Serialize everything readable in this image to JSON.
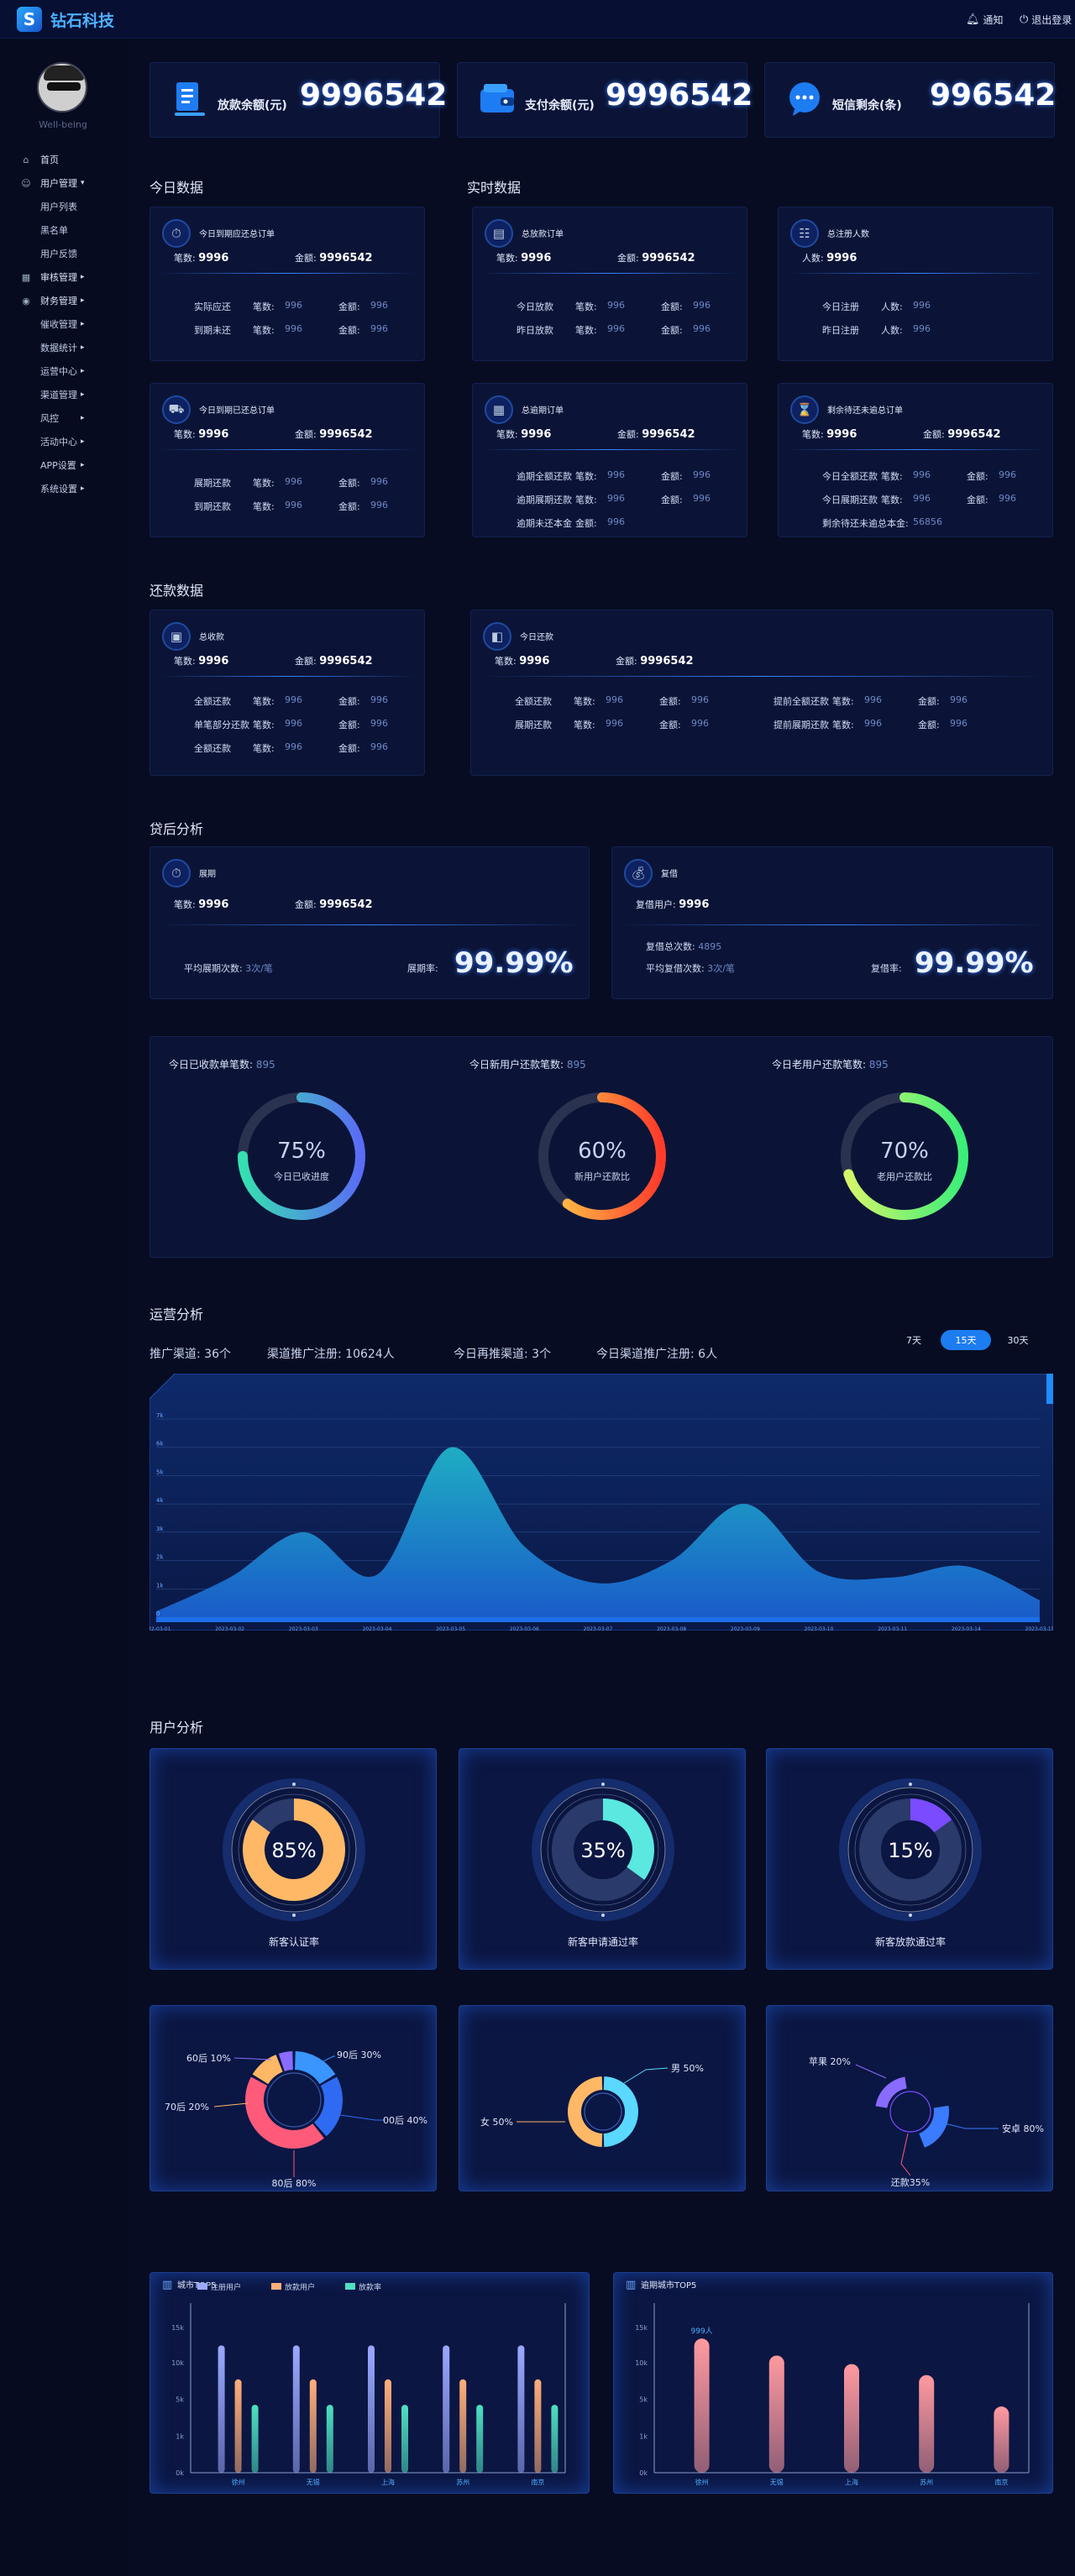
{
  "header": {
    "logo_text": "钻石科技",
    "notice_label": "通知",
    "logout_label": "退出登录"
  },
  "sidebar": {
    "username": "Well-being",
    "items": [
      {
        "label": "首页",
        "icon": "home-icon",
        "level": 1,
        "arrow": ""
      },
      {
        "label": "用户管理",
        "icon": "users-icon",
        "level": 1,
        "arrow": "▾"
      },
      {
        "label": "用户列表",
        "icon": "",
        "level": 2,
        "arrow": ""
      },
      {
        "label": "黑名单",
        "icon": "",
        "level": 2,
        "arrow": ""
      },
      {
        "label": "用户反馈",
        "icon": "",
        "level": 2,
        "arrow": ""
      },
      {
        "label": "审核管理",
        "icon": "audit-icon",
        "level": 1,
        "arrow": "▸"
      },
      {
        "label": "财务管理",
        "icon": "finance-icon",
        "level": 1,
        "arrow": "▸"
      },
      {
        "label": "催收管理",
        "icon": "",
        "level": 2,
        "arrow": "▸"
      },
      {
        "label": "数据统计",
        "icon": "",
        "level": 2,
        "arrow": "▸"
      },
      {
        "label": "运营中心",
        "icon": "",
        "level": 2,
        "arrow": "▸"
      },
      {
        "label": "渠道管理",
        "icon": "",
        "level": 2,
        "arrow": "▸"
      },
      {
        "label": "风控",
        "icon": "",
        "level": 2,
        "arrow": "▸"
      },
      {
        "label": "活动中心",
        "icon": "",
        "level": 2,
        "arrow": "▸"
      },
      {
        "label": "APP设置",
        "icon": "",
        "level": 2,
        "arrow": "▸"
      },
      {
        "label": "系统设置",
        "icon": "",
        "level": 2,
        "arrow": "▸"
      }
    ]
  },
  "top_stats": [
    {
      "label": "放款余额(元)",
      "value": "9996542",
      "icon": "document-icon"
    },
    {
      "label": "支付余额(元)",
      "value": "9996542",
      "icon": "wallet-icon"
    },
    {
      "label": "短信剩余(条)",
      "value": "996542",
      "icon": "message-icon"
    }
  ],
  "sections": {
    "today": "今日数据",
    "realtime": "实时数据",
    "repayment": "还款数据",
    "postloan": "贷后分析",
    "operation": "运营分析",
    "user": "用户分析"
  },
  "today_cards": [
    {
      "title": "今日到期应还总订单",
      "count_label": "笔数:",
      "count": "9996",
      "amount_label": "金额:",
      "amount": "9996542",
      "rows": [
        [
          "实际应还",
          "笔数:",
          "996",
          "金额:",
          "996"
        ],
        [
          "到期未还",
          "笔数:",
          "996",
          "金额:",
          "996"
        ]
      ]
    },
    {
      "title": "今日到期已还总订单",
      "count_label": "笔数:",
      "count": "9996",
      "amount_label": "金额:",
      "amount": "9996542",
      "rows": [
        [
          "展期还款",
          "笔数:",
          "996",
          "金额:",
          "996"
        ],
        [
          "到期还款",
          "笔数:",
          "996",
          "金额:",
          "996"
        ]
      ]
    }
  ],
  "realtime_cards": [
    {
      "title": "总放款订单",
      "count_label": "笔数:",
      "count": "9996",
      "amount_label": "金额:",
      "amount": "9996542",
      "rows": [
        [
          "今日放款",
          "笔数:",
          "996",
          "金额:",
          "996"
        ],
        [
          "昨日放款",
          "笔数:",
          "996",
          "金额:",
          "996"
        ]
      ]
    },
    {
      "title": "总注册人数",
      "count_label": "人数:",
      "count": "9996",
      "rows": [
        [
          "今日注册",
          "人数:",
          "996"
        ],
        [
          "昨日注册",
          "人数:",
          "996"
        ]
      ]
    },
    {
      "title": "总逾期订单",
      "count_label": "笔数:",
      "count": "9996",
      "amount_label": "金额:",
      "amount": "9996542",
      "rows": [
        [
          "逾期全额还款",
          "笔数:",
          "996",
          "金额:",
          "996"
        ],
        [
          "逾期展期还款",
          "笔数:",
          "996",
          "金额:",
          "996"
        ],
        [
          "逾期未还本金",
          "金额:",
          "996"
        ]
      ]
    },
    {
      "title": "剩余待还未逾总订单",
      "count_label": "笔数:",
      "count": "9996",
      "amount_label": "金额:",
      "amount": "9996542",
      "rows": [
        [
          "今日全额还款",
          "笔数:",
          "996",
          "金额:",
          "996"
        ],
        [
          "今日展期还款",
          "笔数:",
          "996",
          "金额:",
          "996"
        ],
        [
          "剩余待还未逾总本金:",
          "",
          "56856"
        ]
      ]
    }
  ],
  "repay_cards": [
    {
      "title": "总收款",
      "count_label": "笔数:",
      "count": "9996",
      "amount_label": "金额:",
      "amount": "9996542",
      "rows": [
        [
          "全额还款",
          "笔数:",
          "996",
          "金额:",
          "996"
        ],
        [
          "单笔部分还款",
          "笔数:",
          "996",
          "金额:",
          "996"
        ],
        [
          "全额还款",
          "笔数:",
          "996",
          "金额:",
          "996"
        ]
      ]
    },
    {
      "title": "今日还款",
      "count_label": "笔数:",
      "count": "9996",
      "amount_label": "金额:",
      "amount": "9996542",
      "rows": [
        [
          "全额还款",
          "笔数:",
          "996",
          "金额:",
          "996"
        ],
        [
          "展期还款",
          "笔数:",
          "996",
          "金额:",
          "996"
        ]
      ],
      "rows_right": [
        [
          "提前全额还款",
          "笔数:",
          "996",
          "金额:",
          "996"
        ],
        [
          "提前展期还款",
          "笔数:",
          "996",
          "金额:",
          "996"
        ]
      ]
    }
  ],
  "postloan_cards": [
    {
      "title": "展期",
      "count_label": "笔数:",
      "count": "9996",
      "amount_label": "金额:",
      "amount": "9996542",
      "avg_label": "平均展期次数:",
      "avg_value": "3次/笔",
      "rate_label": "展期率:",
      "rate_value": "99.99%"
    },
    {
      "title": "复借",
      "count_label": "复借用户:",
      "count": "9996",
      "total_label": "复借总次数:",
      "total_value": "4895",
      "avg_label": "平均复借次数:",
      "avg_value": "3次/笔",
      "rate_label": "复借率:",
      "rate_value": "99.99%"
    }
  ],
  "progress_rings": [
    {
      "label": "今日已收款单笔数:",
      "value": "895",
      "percent": 0.75,
      "percent_text": "75%",
      "caption": "今日已收进度",
      "colors": [
        "#35e0b0",
        "#5a6cf5"
      ]
    },
    {
      "label": "今日新用户还款笔数:",
      "value": "895",
      "percent": 0.6,
      "percent_text": "60%",
      "caption": "新用户还款比",
      "colors": [
        "#ffd24a",
        "#ff3a2a"
      ]
    },
    {
      "label": "今日老用户还款笔数:",
      "value": "895",
      "percent": 0.7,
      "percent_text": "70%",
      "caption": "老用户还款比",
      "colors": [
        "#d8f56a",
        "#3aef78"
      ]
    }
  ],
  "operation": {
    "stats": [
      "推广渠道: 36个",
      "渠道推广注册: 10624人",
      "今日再推渠道: 3个",
      "今日渠道推广注册: 6人"
    ],
    "ranges": [
      "7天",
      "15天",
      "30天"
    ],
    "active_range": "15天"
  },
  "chart_data": [
    {
      "type": "area",
      "title": "",
      "x": [
        "2022-03-01",
        "2023-03-02",
        "2023-03-03",
        "2023-03-04",
        "2023-03-05",
        "2023-03-06",
        "2023-03-07",
        "2023-03-08",
        "2023-03-09",
        "2023-03-10",
        "2023-03-11",
        "2023-03-14",
        "2023-03-15"
      ],
      "y_ticks": [
        "0",
        "1k",
        "2k",
        "3k",
        "4k",
        "5k",
        "6k",
        "7k"
      ],
      "series": [
        {
          "name": "",
          "values": [
            200,
            1400,
            3000,
            1500,
            6000,
            2500,
            1200,
            2000,
            4000,
            1600,
            1400,
            1800,
            600
          ]
        }
      ],
      "ylim": [
        0,
        7000
      ],
      "grid": true
    },
    {
      "type": "pie",
      "title": "",
      "slices": [
        {
          "label": "90后 30%",
          "value": 30,
          "color": "#3a95ff"
        },
        {
          "label": "00后 40%",
          "value": 40,
          "color": "#2f6bf2"
        },
        {
          "label": "80后 80%",
          "value": 80,
          "color": "#ff5a7a"
        },
        {
          "label": "70后 20%",
          "value": 20,
          "color": "#ffb865"
        },
        {
          "label": "60后 10%",
          "value": 10,
          "color": "#8a6bff"
        }
      ]
    },
    {
      "type": "pie",
      "title": "",
      "slices": [
        {
          "label": "男 50%",
          "value": 50,
          "color": "#5ad8ff"
        },
        {
          "label": "女 50%",
          "value": 50,
          "color": "#ffb865"
        }
      ]
    },
    {
      "type": "pie",
      "title": "",
      "slices": [
        {
          "label": "苹果 20%",
          "value": 20,
          "color": "#8a6bff"
        },
        {
          "label": "安卓 80%",
          "value": 80,
          "color": "#3a7bff"
        },
        {
          "label": "还款35%",
          "value": 35,
          "color": "#ff5a7a"
        }
      ]
    },
    {
      "type": "bar",
      "title": "城市TOP5",
      "categories": [
        "徐州",
        "无锡",
        "上海",
        "苏州",
        "南京"
      ],
      "y_ticks": [
        "0k",
        "1k",
        "5k",
        "10k",
        "15k"
      ],
      "series": [
        {
          "name": "注册用户",
          "values": [
            15,
            15,
            15,
            15,
            15
          ],
          "color": "#9aa8ff"
        },
        {
          "name": "放款用户",
          "values": [
            11,
            11,
            11,
            11,
            11
          ],
          "color": "#ffae7a"
        },
        {
          "name": "放款率",
          "values": [
            8,
            8,
            8,
            8,
            8
          ],
          "color": "#4ee0c0"
        }
      ],
      "ylim": [
        0,
        18
      ]
    },
    {
      "type": "bar",
      "title": "逾期城市TOP5",
      "categories": [
        "徐州",
        "无锡",
        "上海",
        "苏州",
        "南京"
      ],
      "y_ticks": [
        "0k",
        "1k",
        "5k",
        "10k",
        "15k"
      ],
      "series": [
        {
          "name": "",
          "values": [
            15.8,
            13.8,
            12.8,
            11.5,
            7.8
          ],
          "color": "#ff9aa0"
        }
      ],
      "top_label": "999人",
      "ylim": [
        0,
        18
      ]
    }
  ],
  "user_rings": [
    {
      "percent": 0.85,
      "percent_text": "85%",
      "caption": "新客认证率",
      "color": "#ffb865"
    },
    {
      "percent": 0.35,
      "percent_text": "35%",
      "caption": "新客申请通过率",
      "color": "#5ae8e0"
    },
    {
      "percent": 0.15,
      "percent_text": "15%",
      "caption": "新客放款通过率",
      "color": "#7a4bff"
    }
  ]
}
